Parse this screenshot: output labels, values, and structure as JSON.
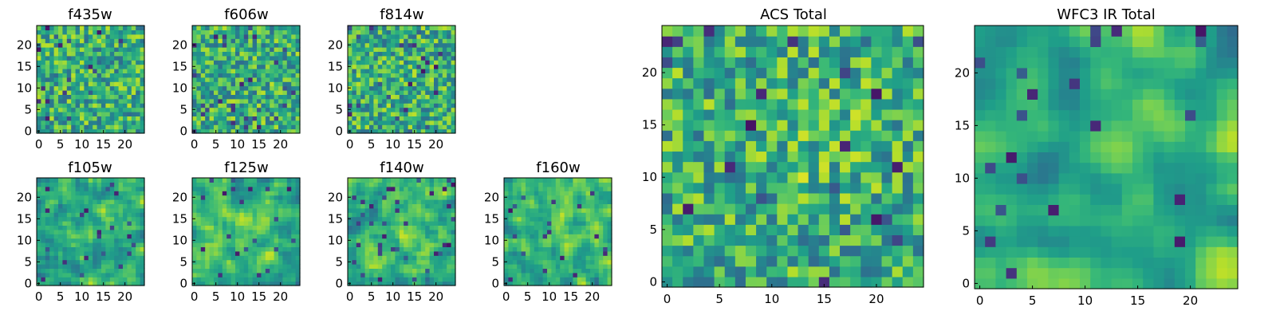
{
  "chart_data": [
    {
      "type": "heatmap",
      "title": "f435w",
      "grid": [
        25,
        25
      ],
      "xticks": [
        "0",
        "5",
        "10",
        "15",
        "20"
      ],
      "yticks": [
        "0",
        "5",
        "10",
        "15",
        "20"
      ],
      "xlim": [
        -0.5,
        24.5
      ],
      "ylim": [
        -0.5,
        24.5
      ],
      "colormap": "viridis",
      "seed": 11,
      "smooth": 0,
      "bright": 0.0
    },
    {
      "type": "heatmap",
      "title": "f606w",
      "grid": [
        25,
        25
      ],
      "xticks": [
        "0",
        "5",
        "10",
        "15",
        "20"
      ],
      "yticks": [
        "0",
        "5",
        "10",
        "15",
        "20"
      ],
      "xlim": [
        -0.5,
        24.5
      ],
      "ylim": [
        -0.5,
        24.5
      ],
      "colormap": "viridis",
      "seed": 23,
      "smooth": 0,
      "bright": 0.0
    },
    {
      "type": "heatmap",
      "title": "f814w",
      "grid": [
        25,
        25
      ],
      "xticks": [
        "0",
        "5",
        "10",
        "15",
        "20"
      ],
      "yticks": [
        "0",
        "5",
        "10",
        "15",
        "20"
      ],
      "xlim": [
        -0.5,
        24.5
      ],
      "ylim": [
        -0.5,
        24.5
      ],
      "colormap": "viridis",
      "seed": 37,
      "smooth": 0,
      "bright": 0.05
    },
    {
      "type": "heatmap",
      "title": "f105w",
      "grid": [
        25,
        25
      ],
      "xticks": [
        "0",
        "5",
        "10",
        "15",
        "20"
      ],
      "yticks": [
        "0",
        "5",
        "10",
        "15",
        "20"
      ],
      "xlim": [
        -0.5,
        24.5
      ],
      "ylim": [
        -0.5,
        24.5
      ],
      "colormap": "viridis",
      "seed": 41,
      "smooth": 1,
      "bright": 0.35
    },
    {
      "type": "heatmap",
      "title": "f125w",
      "grid": [
        25,
        25
      ],
      "xticks": [
        "0",
        "5",
        "10",
        "15",
        "20"
      ],
      "yticks": [
        "0",
        "5",
        "10",
        "15",
        "20"
      ],
      "xlim": [
        -0.5,
        24.5
      ],
      "ylim": [
        -0.5,
        24.5
      ],
      "colormap": "viridis",
      "seed": 53,
      "smooth": 1,
      "bright": 0.3
    },
    {
      "type": "heatmap",
      "title": "f140w",
      "grid": [
        25,
        25
      ],
      "xticks": [
        "0",
        "5",
        "10",
        "15",
        "20"
      ],
      "yticks": [
        "0",
        "5",
        "10",
        "15",
        "20"
      ],
      "xlim": [
        -0.5,
        24.5
      ],
      "ylim": [
        -0.5,
        24.5
      ],
      "colormap": "viridis",
      "seed": 67,
      "smooth": 1,
      "bright": 0.3
    },
    {
      "type": "heatmap",
      "title": "f160w",
      "grid": [
        25,
        25
      ],
      "xticks": [
        "0",
        "5",
        "10",
        "15",
        "20"
      ],
      "yticks": [
        "0",
        "5",
        "10",
        "15",
        "20"
      ],
      "xlim": [
        -0.5,
        24.5
      ],
      "ylim": [
        -0.5,
        24.5
      ],
      "colormap": "viridis",
      "seed": 79,
      "smooth": 1,
      "bright": 0.4
    },
    {
      "type": "heatmap",
      "title": "ACS Total",
      "grid": [
        25,
        25
      ],
      "xticks": [
        "0",
        "5",
        "10",
        "15",
        "20"
      ],
      "yticks": [
        "0",
        "5",
        "10",
        "15",
        "20"
      ],
      "xlim": [
        -0.5,
        24.5
      ],
      "ylim": [
        -0.5,
        24.5
      ],
      "colormap": "viridis",
      "seed": 91,
      "smooth": 0,
      "bright": 0.25
    },
    {
      "type": "heatmap",
      "title": "WFC3 IR Total",
      "grid": [
        25,
        25
      ],
      "xticks": [
        "0",
        "5",
        "10",
        "15",
        "20"
      ],
      "yticks": [
        "0",
        "5",
        "10",
        "15",
        "20"
      ],
      "xlim": [
        -0.5,
        24.5
      ],
      "ylim": [
        -0.5,
        24.5
      ],
      "colormap": "viridis",
      "seed": 103,
      "smooth": 2,
      "bright": 0.45
    }
  ]
}
